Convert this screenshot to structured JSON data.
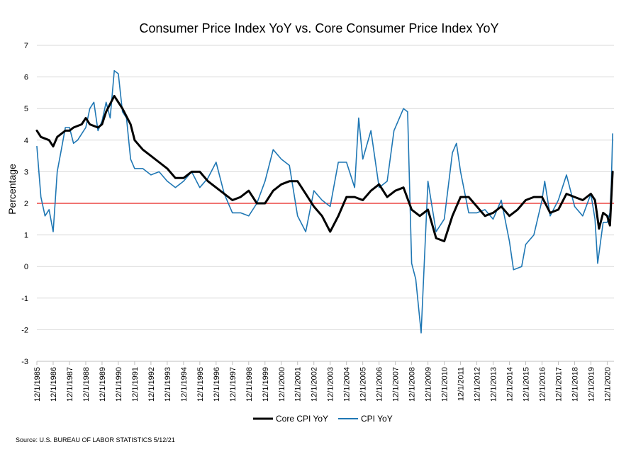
{
  "chart_data": {
    "type": "line",
    "title": "Consumer Price Index YoY vs. Core Consumer Price Index YoY",
    "ylabel": "Percentage",
    "xlabel": "",
    "ylim": [
      -3,
      7
    ],
    "yticks": [
      -3,
      -2,
      -1,
      0,
      1,
      2,
      3,
      4,
      5,
      6,
      7
    ],
    "xlim": [
      "12/1/1985",
      "5/1/2021"
    ],
    "xticks": [
      "12/1/1985",
      "12/1/1986",
      "12/1/1987",
      "12/1/1988",
      "12/1/1989",
      "12/1/1990",
      "12/1/1991",
      "12/1/1992",
      "12/1/1993",
      "12/1/1994",
      "12/1/1995",
      "12/1/1996",
      "12/1/1997",
      "12/1/1998",
      "12/1/1999",
      "12/1/2000",
      "12/1/2001",
      "12/1/2002",
      "12/1/2003",
      "12/1/2004",
      "12/1/2005",
      "12/1/2006",
      "12/1/2007",
      "12/1/2008",
      "12/1/2009",
      "12/1/2010",
      "12/1/2011",
      "12/1/2012",
      "12/1/2013",
      "12/1/2014",
      "12/1/2015",
      "12/1/2016",
      "12/1/2017",
      "12/1/2018",
      "12/1/2019",
      "12/1/2020"
    ],
    "grid": "horizontal",
    "legend_position": "bottom",
    "reference_line": {
      "y": 2,
      "color": "#e8201f"
    },
    "source": "Source: U.S. BUREAU OF LABOR STATISTICS 5/12/21",
    "series": [
      {
        "name": "Core CPI YoY",
        "color": "#000000",
        "x": [
          "12/1/1985",
          "3/1/1986",
          "9/1/1986",
          "12/1/1986",
          "3/1/1987",
          "9/1/1987",
          "12/1/1987",
          "3/1/1988",
          "9/1/1988",
          "12/1/1988",
          "3/1/1989",
          "9/1/1989",
          "12/1/1989",
          "3/1/1990",
          "9/1/1990",
          "12/1/1990",
          "3/1/1991",
          "9/1/1991",
          "12/1/1991",
          "6/1/1992",
          "12/1/1992",
          "6/1/1993",
          "12/1/1993",
          "6/1/1994",
          "12/1/1994",
          "6/1/1995",
          "12/1/1995",
          "6/1/1996",
          "12/1/1996",
          "6/1/1997",
          "12/1/1997",
          "6/1/1998",
          "12/1/1998",
          "6/1/1999",
          "12/1/1999",
          "6/1/2000",
          "12/1/2000",
          "6/1/2001",
          "12/1/2001",
          "6/1/2002",
          "12/1/2002",
          "6/1/2003",
          "12/1/2003",
          "6/1/2004",
          "12/1/2004",
          "6/1/2005",
          "12/1/2005",
          "6/1/2006",
          "12/1/2006",
          "6/1/2007",
          "12/1/2007",
          "6/1/2008",
          "12/1/2008",
          "6/1/2009",
          "12/1/2009",
          "6/1/2010",
          "12/1/2010",
          "6/1/2011",
          "12/1/2011",
          "6/1/2012",
          "12/1/2012",
          "6/1/2013",
          "12/1/2013",
          "6/1/2014",
          "12/1/2014",
          "6/1/2015",
          "12/1/2015",
          "6/1/2016",
          "12/1/2016",
          "6/1/2017",
          "12/1/2017",
          "6/1/2018",
          "12/1/2018",
          "6/1/2019",
          "12/1/2019",
          "3/1/2020",
          "6/1/2020",
          "9/1/2020",
          "12/1/2020",
          "2/1/2021",
          "4/1/2021"
        ],
        "values": [
          4.3,
          4.1,
          4.0,
          3.8,
          4.1,
          4.3,
          4.3,
          4.4,
          4.5,
          4.7,
          4.5,
          4.4,
          4.5,
          4.9,
          5.4,
          5.2,
          5.0,
          4.5,
          4.0,
          3.7,
          3.5,
          3.3,
          3.1,
          2.8,
          2.8,
          3.0,
          3.0,
          2.7,
          2.5,
          2.3,
          2.1,
          2.2,
          2.4,
          2.0,
          2.0,
          2.4,
          2.6,
          2.7,
          2.7,
          2.3,
          1.9,
          1.6,
          1.1,
          1.6,
          2.2,
          2.2,
          2.1,
          2.4,
          2.6,
          2.2,
          2.4,
          2.5,
          1.8,
          1.6,
          1.8,
          0.9,
          0.8,
          1.6,
          2.2,
          2.2,
          1.9,
          1.6,
          1.7,
          1.9,
          1.6,
          1.8,
          2.1,
          2.2,
          2.2,
          1.7,
          1.8,
          2.3,
          2.2,
          2.1,
          2.3,
          2.1,
          1.2,
          1.7,
          1.6,
          1.3,
          3.0
        ]
      },
      {
        "name": "CPI YoY",
        "color": "#1f77b4",
        "x": [
          "12/1/1985",
          "3/1/1986",
          "6/1/1986",
          "9/1/1986",
          "12/1/1986",
          "3/1/1987",
          "6/1/1987",
          "9/1/1987",
          "12/1/1987",
          "3/1/1988",
          "6/1/1988",
          "9/1/1988",
          "12/1/1988",
          "3/1/1989",
          "6/1/1989",
          "9/1/1989",
          "12/1/1989",
          "3/1/1990",
          "6/1/1990",
          "9/1/1990",
          "12/1/1990",
          "3/1/1991",
          "6/1/1991",
          "9/1/1991",
          "12/1/1991",
          "6/1/1992",
          "12/1/1992",
          "6/1/1993",
          "12/1/1993",
          "6/1/1994",
          "12/1/1994",
          "6/1/1995",
          "12/1/1995",
          "6/1/1996",
          "12/1/1996",
          "6/1/1997",
          "12/1/1997",
          "6/1/1998",
          "12/1/1998",
          "6/1/1999",
          "12/1/1999",
          "6/1/2000",
          "12/1/2000",
          "6/1/2001",
          "12/1/2001",
          "6/1/2002",
          "12/1/2002",
          "6/1/2003",
          "12/1/2003",
          "6/1/2004",
          "12/1/2004",
          "6/1/2005",
          "9/1/2005",
          "12/1/2005",
          "6/1/2006",
          "12/1/2006",
          "6/1/2007",
          "11/1/2007",
          "6/1/2008",
          "9/1/2008",
          "12/1/2008",
          "3/1/2009",
          "7/1/2009",
          "12/1/2009",
          "6/1/2010",
          "12/1/2010",
          "6/1/2011",
          "9/1/2011",
          "12/1/2011",
          "6/1/2012",
          "12/1/2012",
          "6/1/2013",
          "12/1/2013",
          "6/1/2014",
          "12/1/2014",
          "3/1/2015",
          "9/1/2015",
          "12/1/2015",
          "6/1/2016",
          "12/1/2016",
          "2/1/2017",
          "6/1/2017",
          "12/1/2017",
          "6/1/2018",
          "12/1/2018",
          "6/1/2019",
          "12/1/2019",
          "3/1/2020",
          "5/1/2020",
          "9/1/2020",
          "12/1/2020",
          "2/1/2021",
          "3/1/2021",
          "4/1/2021"
        ],
        "values": [
          3.8,
          2.2,
          1.6,
          1.8,
          1.1,
          3.0,
          3.7,
          4.4,
          4.4,
          3.9,
          4.0,
          4.2,
          4.4,
          5.0,
          5.2,
          4.3,
          4.6,
          5.2,
          4.7,
          6.2,
          6.1,
          4.9,
          4.7,
          3.4,
          3.1,
          3.1,
          2.9,
          3.0,
          2.7,
          2.5,
          2.7,
          3.0,
          2.5,
          2.8,
          3.3,
          2.3,
          1.7,
          1.7,
          1.6,
          2.0,
          2.7,
          3.7,
          3.4,
          3.2,
          1.6,
          1.1,
          2.4,
          2.1,
          1.9,
          3.3,
          3.3,
          2.5,
          4.7,
          3.4,
          4.3,
          2.5,
          2.7,
          4.3,
          5.0,
          4.9,
          0.1,
          -0.4,
          -2.1,
          2.7,
          1.1,
          1.5,
          3.6,
          3.9,
          3.0,
          1.7,
          1.7,
          1.8,
          1.5,
          2.1,
          0.8,
          -0.1,
          0.0,
          0.7,
          1.0,
          2.1,
          2.7,
          1.6,
          2.1,
          2.9,
          1.9,
          1.6,
          2.3,
          1.5,
          0.1,
          1.4,
          1.4,
          1.7,
          2.6,
          4.2
        ]
      }
    ]
  }
}
